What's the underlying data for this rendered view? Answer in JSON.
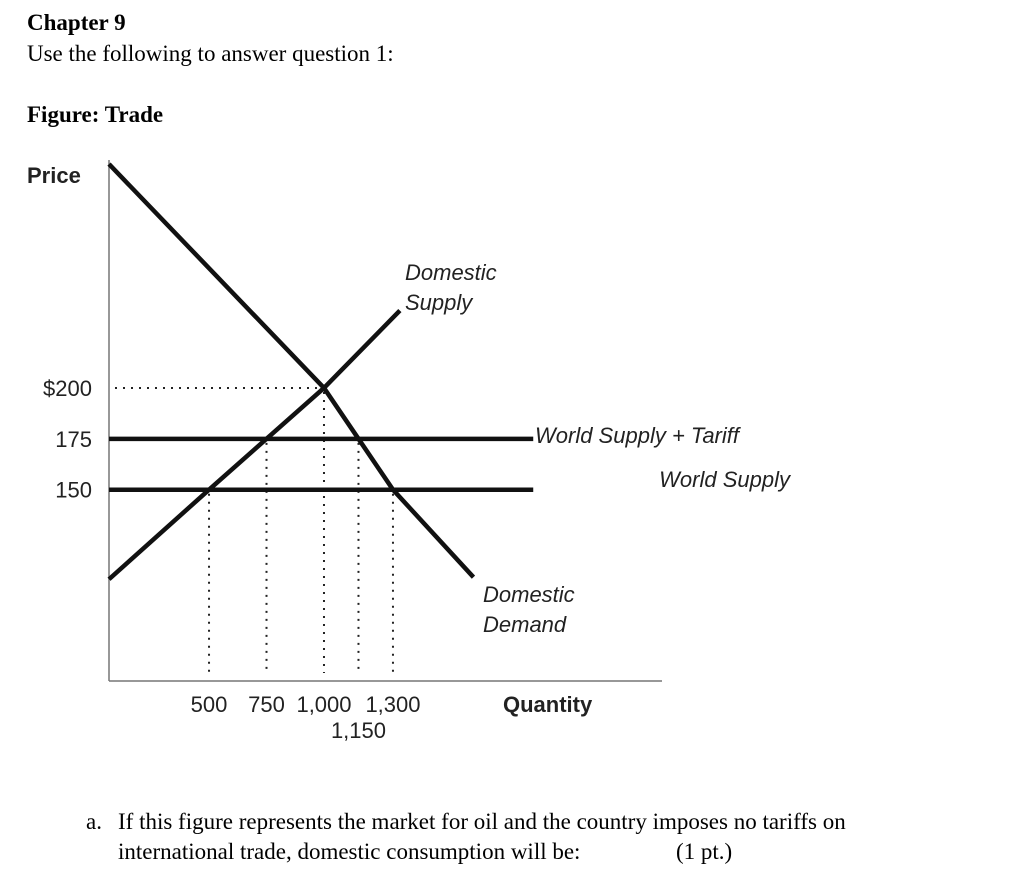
{
  "header": {
    "chapter": "Chapter 9",
    "instruction": "Use the following to answer question 1:",
    "figure_title": "Figure: Trade"
  },
  "chart_data": {
    "type": "line",
    "y_label": "Price",
    "x_label": "Quantity",
    "xlim": [
      65,
      2470
    ],
    "ylim": [
      56,
      312
    ],
    "yticks": [
      {
        "value": 200,
        "label": "$200"
      },
      175,
      150
    ],
    "xticks": [
      500,
      750,
      {
        "value": 1000,
        "label": "1,000"
      },
      {
        "value": 1150,
        "label": "1,150"
      },
      {
        "value": 1300,
        "label": "1,300"
      }
    ],
    "series": [
      {
        "label": [
          "Domestic",
          "Supply"
        ],
        "color": "#111111",
        "x": [
          65,
          500,
          750,
          1000,
          1330
        ],
        "values": [
          106,
          150,
          175,
          200,
          238
        ]
      },
      {
        "label": [
          "Domestic",
          "Demand"
        ],
        "color": "#111111",
        "x": [
          65,
          1000,
          1150,
          1300,
          1650
        ],
        "values": [
          310,
          200,
          175,
          150,
          107
        ]
      },
      {
        "label": [
          "World Supply + Tariff"
        ],
        "color": "#111111",
        "x": [
          65,
          1910
        ],
        "values": [
          175,
          175
        ]
      },
      {
        "label": [
          "World Supply"
        ],
        "color": "#111111",
        "x": [
          65,
          1910
        ],
        "values": [
          150,
          150
        ]
      }
    ]
  },
  "question": {
    "marker": "a.",
    "lines": [
      "If this figure represents the market for oil and the country imposes no tariffs on",
      "international trade, domestic consumption will be:"
    ],
    "points": "(1 pt.)"
  }
}
